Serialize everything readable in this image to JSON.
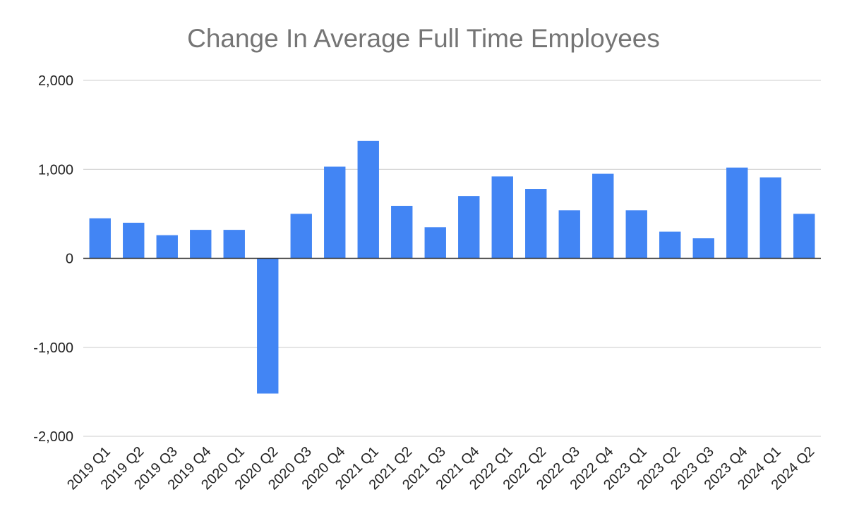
{
  "chart_data": {
    "type": "bar",
    "title": "Change In Average Full Time Employees",
    "xlabel": "",
    "ylabel": "",
    "categories": [
      "2019 Q1",
      "2019 Q2",
      "2019 Q3",
      "2019 Q4",
      "2020 Q1",
      "2020 Q2",
      "2020 Q3",
      "2020 Q4",
      "2021 Q1",
      "2021 Q2",
      "2021 Q3",
      "2021 Q4",
      "2022 Q1",
      "2022 Q2",
      "2022 Q3",
      "2022 Q4",
      "2023 Q1",
      "2023 Q2",
      "2023 Q3",
      "2023 Q4",
      "2024 Q1",
      "2024 Q2"
    ],
    "values": [
      450,
      400,
      260,
      320,
      320,
      -1520,
      500,
      1030,
      1320,
      590,
      350,
      700,
      920,
      780,
      540,
      950,
      540,
      300,
      225,
      1020,
      910,
      500
    ],
    "ylim": [
      -2000,
      2000
    ],
    "yticks": [
      -2000,
      -1000,
      0,
      1000,
      2000
    ],
    "ytick_labels": [
      "-2,000",
      "-1,000",
      "0",
      "1,000",
      "2,000"
    ],
    "grid": true,
    "legend": "none",
    "colors": {
      "bar": "#4285f4",
      "grid": "#cccccc",
      "zero_line": "#333333"
    }
  }
}
